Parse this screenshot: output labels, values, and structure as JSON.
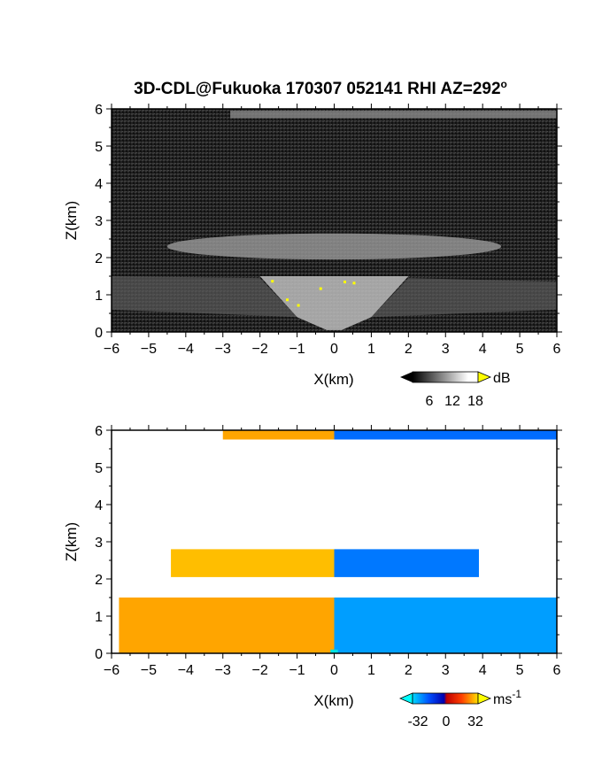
{
  "chart_data": [
    {
      "type": "heatmap",
      "title": "3D-CDL@Fukuoka 170307 052141 RHI AZ=292",
      "title_superscript": "o",
      "xlabel": "X(km)",
      "ylabel": "Z(km)",
      "xlim": [
        -6,
        6
      ],
      "ylim": [
        0,
        6
      ],
      "x_ticks": [
        "-6",
        "-5",
        "-4",
        "-3",
        "-2",
        "-1",
        "0",
        "1",
        "2",
        "3",
        "4",
        "5",
        "6"
      ],
      "y_ticks": [
        "0",
        "1",
        "2",
        "3",
        "4",
        "5",
        "6"
      ],
      "colorbar": {
        "unit": "dB",
        "ticks": [
          "6",
          "12",
          "18"
        ],
        "colormap": "grayscale"
      },
      "layers": [
        {
          "z_range": [
            0.0,
            1.5
          ],
          "description_value": "strong return near ground"
        },
        {
          "z_range": [
            1.9,
            2.7
          ],
          "value_dB_approx": 12
        },
        {
          "z_range": [
            5.75,
            6.0
          ],
          "value_dB_approx": 10
        }
      ]
    },
    {
      "type": "heatmap",
      "xlabel": "X(km)",
      "ylabel": "Z(km)",
      "xlim": [
        -6,
        6
      ],
      "ylim": [
        0,
        6
      ],
      "x_ticks": [
        "-6",
        "-5",
        "-4",
        "-3",
        "-2",
        "-1",
        "0",
        "1",
        "2",
        "3",
        "4",
        "5",
        "6"
      ],
      "y_ticks": [
        "0",
        "1",
        "2",
        "3",
        "4",
        "5",
        "6"
      ],
      "colorbar": {
        "unit": "ms",
        "unit_superscript": "-1",
        "ticks": [
          "-32",
          "0",
          "32"
        ],
        "colormap": "blue-red-yellow"
      },
      "layers": [
        {
          "z_range": [
            0.0,
            1.5
          ],
          "x_range": [
            -5.8,
            6.0
          ],
          "velocity_left": 20,
          "velocity_right": -22
        },
        {
          "z_range": [
            2.05,
            2.8
          ],
          "x_range": [
            -4.4,
            3.9
          ],
          "velocity_left": 24,
          "velocity_right": -16
        },
        {
          "z_range": [
            5.75,
            6.0
          ],
          "x_range": [
            -3.0,
            6.0
          ],
          "velocity_left": 20,
          "velocity_right": -14
        }
      ]
    }
  ]
}
